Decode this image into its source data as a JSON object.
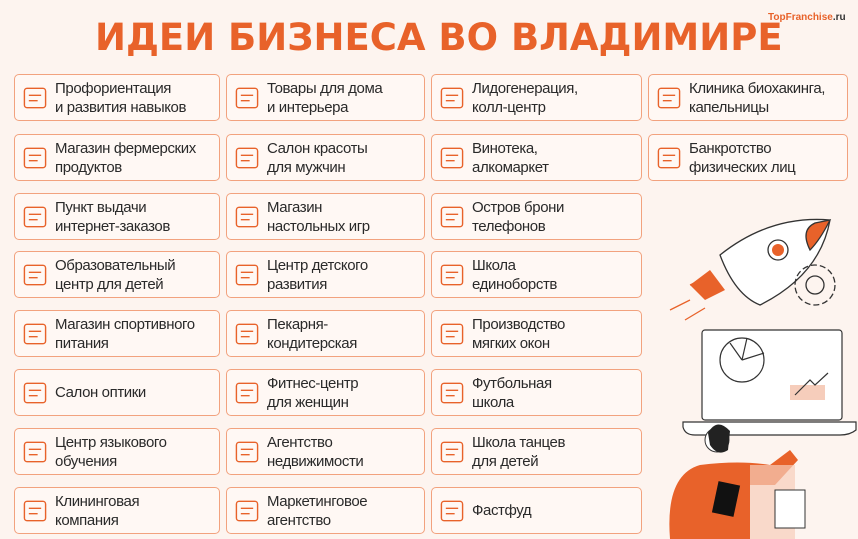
{
  "title": "ИДЕИ БИЗНЕСА ВО ВЛАДИМИРЕ",
  "logo": {
    "brand": "TopFranchise",
    "suffix": ".ru"
  },
  "colors": {
    "accent": "#e8622a",
    "border": "#f2a27e",
    "background": "#fdf4ef"
  },
  "columns": [
    [
      {
        "label": "Профориентация\nи развития навыков",
        "icon": "job-signpost-icon"
      },
      {
        "label": "Магазин фермерских\nпродуктов",
        "icon": "farm-shop-icon"
      },
      {
        "label": "Пункт выдачи\nинтернет-заказов",
        "icon": "phone-order-icon"
      },
      {
        "label": "Образовательный\nцентр для детей",
        "icon": "graduation-books-icon"
      },
      {
        "label": "Магазин спортивного\nпитания",
        "icon": "sport-nutrition-icon"
      },
      {
        "label": "Салон оптики",
        "icon": "glasses-shop-icon"
      },
      {
        "label": "Центр языкового\nобучения",
        "icon": "language-icon"
      },
      {
        "label": "Клининговая\nкомпания",
        "icon": "cleaner-icon"
      }
    ],
    [
      {
        "label": "Товары для дома\nи интерьера",
        "icon": "home-goods-store-icon"
      },
      {
        "label": "Салон красоты\nдля мужчин",
        "icon": "barber-icon"
      },
      {
        "label": "Магазин\nнастольных игр",
        "icon": "board-game-icon"
      },
      {
        "label": "Центр детского\nразвития",
        "icon": "abc-book-icon"
      },
      {
        "label": "Пекарня-\nкондитерская",
        "icon": "bakery-icon"
      },
      {
        "label": "Фитнес-центр\nдля женщин",
        "icon": "fitness-woman-icon"
      },
      {
        "label": "Агентство\nнедвижимости",
        "icon": "real-estate-icon"
      },
      {
        "label": "Маркетинговое\nагентство",
        "icon": "megaphone-icon"
      }
    ],
    [
      {
        "label": "Лидогенерация,\nколл-центр",
        "icon": "call-center-icon"
      },
      {
        "label": "Винотека,\nалкомаркет",
        "icon": "wine-shop-icon"
      },
      {
        "label": "Остров брони\nтелефонов",
        "icon": "phone-shield-icon"
      },
      {
        "label": "Школа\nединоборств",
        "icon": "martial-arts-icon"
      },
      {
        "label": "Производство\nмягких окон",
        "icon": "window-icon"
      },
      {
        "label": "Футбольная\nшкола",
        "icon": "football-icon"
      },
      {
        "label": "Школа танцев\nдля детей",
        "icon": "dance-icon"
      },
      {
        "label": "Фастфуд",
        "icon": "hotdog-icon"
      }
    ],
    [
      {
        "label": "Клиника биохакинга,\nкапельницы",
        "icon": "iv-drip-icon"
      },
      {
        "label": "Банкротство\nфизических лиц",
        "icon": "piggy-bank-icon"
      }
    ]
  ]
}
